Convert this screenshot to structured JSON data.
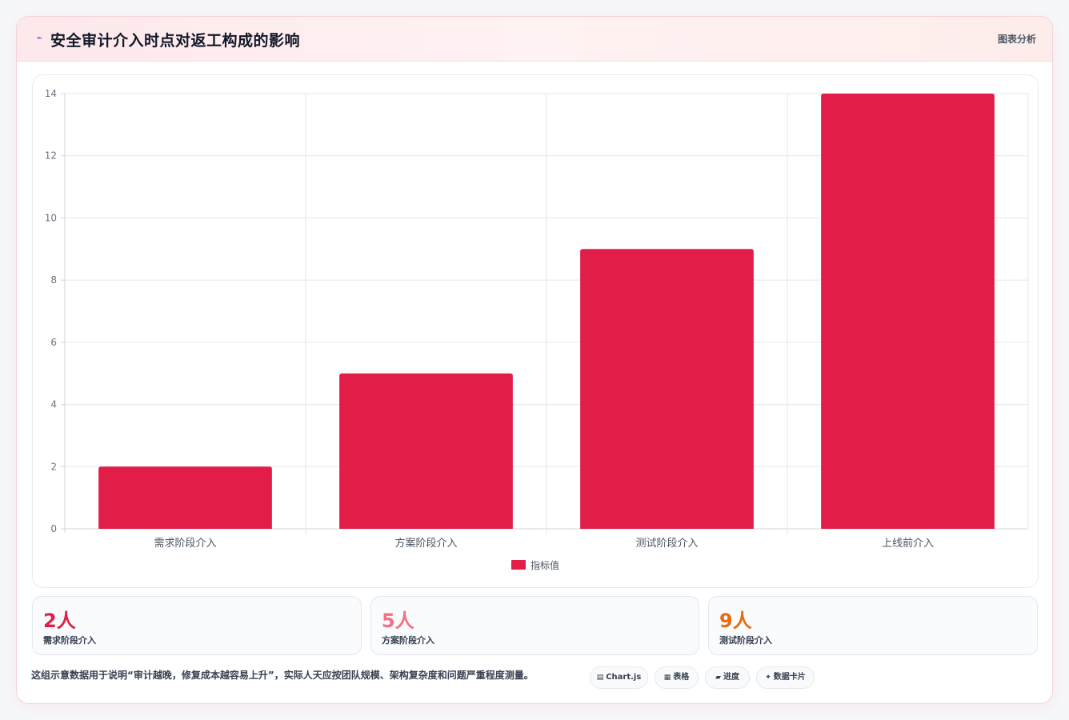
{
  "header": {
    "icon": "lightning-icon",
    "title": "安全审计介入时点对返工构成的影响",
    "action_label": "图表分析"
  },
  "chart_data": {
    "type": "bar",
    "categories": [
      "需求阶段介入",
      "方案阶段介入",
      "测试阶段介入",
      "上线前介入"
    ],
    "series": [
      {
        "name": "指标值",
        "values": [
          2,
          5,
          9,
          14
        ],
        "color": "#e11d48"
      }
    ],
    "ylim": [
      0,
      14
    ],
    "yticks": [
      0,
      2,
      4,
      6,
      8,
      10,
      12,
      14
    ],
    "grid": true,
    "legend": "bottom-center"
  },
  "stats": [
    {
      "value": "2人",
      "label": "需求阶段介入",
      "color": "#e11d48"
    },
    {
      "value": "5人",
      "label": "方案阶段介入",
      "color": "#f47185"
    },
    {
      "value": "9人",
      "label": "测试阶段介入",
      "color": "#ea6a0c"
    }
  ],
  "footer": {
    "note": "这组示意数据用于说明“审计越晚，修复成本越容易上升”，实际人天应按团队规模、架构复杂度和问题严重程度测量。",
    "chips": [
      {
        "icon": "chart-icon",
        "glyph": "▤",
        "label": "Chart.js"
      },
      {
        "icon": "table-icon",
        "glyph": "▦",
        "label": "表格"
      },
      {
        "icon": "progress-icon",
        "glyph": "▰",
        "label": "进度"
      },
      {
        "icon": "sparkle-icon",
        "glyph": "✦",
        "label": "数据卡片"
      }
    ]
  }
}
